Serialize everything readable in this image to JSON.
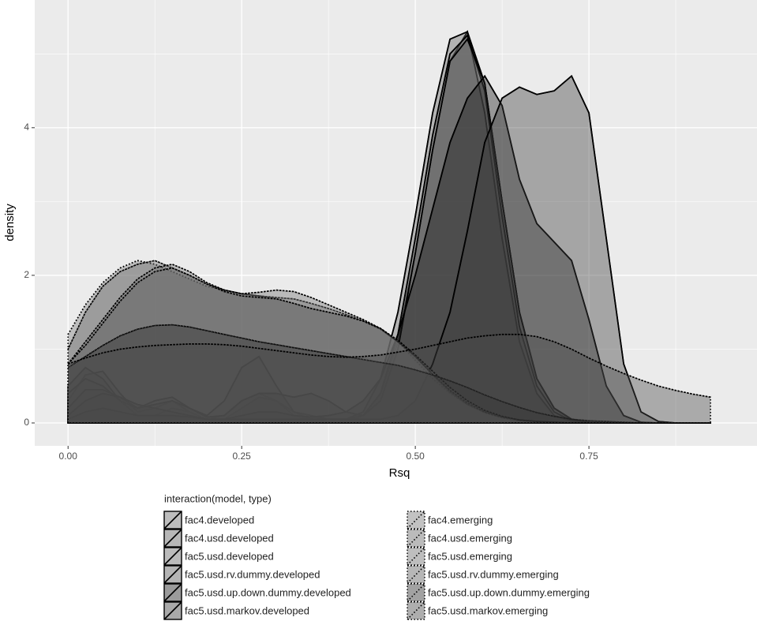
{
  "chart_data": {
    "type": "density",
    "x_label": "Rsq",
    "y_label": "density",
    "legend_title": "interaction(model, type)",
    "legend_position": "bottom",
    "grid": true,
    "fill_opacity": 0.4,
    "xlim": [
      -0.048,
      0.992
    ],
    "ylim": [
      -0.31,
      5.73
    ],
    "xticks": [
      {
        "value": 0,
        "label": "0.00"
      },
      {
        "value": 0.25,
        "label": "0.25"
      },
      {
        "value": 0.5,
        "label": "0.50"
      },
      {
        "value": 0.75,
        "label": "0.75"
      }
    ],
    "yticks": [
      0,
      2,
      4
    ],
    "x": [
      0,
      0.025,
      0.05,
      0.075,
      0.1,
      0.125,
      0.15,
      0.175,
      0.2,
      0.225,
      0.25,
      0.275,
      0.3,
      0.325,
      0.35,
      0.375,
      0.4,
      0.425,
      0.45,
      0.475,
      0.5,
      0.525,
      0.55,
      0.575,
      0.6,
      0.625,
      0.65,
      0.675,
      0.7,
      0.725,
      0.75,
      0.775,
      0.8,
      0.825,
      0.85,
      0.875,
      0.9,
      0.925
    ],
    "series": [
      {
        "name": "fac4.developed",
        "color": "#6e6e6e",
        "linestyle": "solid",
        "values": [
          0.3,
          0.65,
          0.7,
          0.4,
          0.15,
          0.2,
          0.3,
          0.15,
          0.05,
          0.1,
          0.3,
          0.4,
          0.3,
          0.1,
          0.05,
          0.02,
          0.03,
          0.1,
          0.4,
          1.1,
          2.3,
          3.7,
          4.9,
          5.3,
          4.6,
          3.0,
          1.5,
          0.6,
          0.2,
          0.05,
          0.01,
          0,
          0,
          0,
          0,
          0,
          0,
          0
        ]
      },
      {
        "name": "fac4.usd.developed",
        "color": "#5e5e5e",
        "linestyle": "solid",
        "values": [
          0.5,
          0.75,
          0.6,
          0.3,
          0.1,
          0.1,
          0.2,
          0.15,
          0.05,
          0.05,
          0.2,
          0.35,
          0.3,
          0.15,
          0.05,
          0.02,
          0.05,
          0.15,
          0.6,
          1.5,
          2.8,
          4.2,
          5.2,
          5.3,
          4.2,
          2.5,
          1.1,
          0.4,
          0.1,
          0.02,
          0,
          0,
          0,
          0,
          0,
          0,
          0,
          0
        ]
      },
      {
        "name": "fac5.usd.developed",
        "color": "#6a6a6a",
        "linestyle": "solid",
        "values": [
          0.4,
          0.6,
          0.5,
          0.3,
          0.2,
          0.3,
          0.35,
          0.2,
          0.1,
          0.3,
          0.75,
          0.9,
          0.5,
          0.15,
          0.1,
          0.05,
          0.05,
          0.1,
          0.4,
          1.2,
          2.5,
          3.9,
          5.0,
          5.25,
          4.5,
          2.8,
          1.3,
          0.5,
          0.15,
          0.03,
          0,
          0,
          0,
          0,
          0,
          0,
          0,
          0
        ]
      },
      {
        "name": "fac5.usd.rv.dummy.developed",
        "color": "#585858",
        "linestyle": "solid",
        "values": [
          0.2,
          0.45,
          0.45,
          0.35,
          0.2,
          0.25,
          0.3,
          0.2,
          0.08,
          0.1,
          0.3,
          0.4,
          0.4,
          0.35,
          0.4,
          0.3,
          0.15,
          0.1,
          0.3,
          1.0,
          2.3,
          3.7,
          4.9,
          5.2,
          4.6,
          3.0,
          1.5,
          0.6,
          0.2,
          0.05,
          0,
          0,
          0,
          0,
          0,
          0,
          0,
          0
        ]
      },
      {
        "name": "fac5.usd.up.down.dummy.developed",
        "color": "#1a1a1a",
        "linestyle": "solid",
        "values": [
          0.1,
          0.3,
          0.4,
          0.35,
          0.25,
          0.2,
          0.15,
          0.1,
          0.05,
          0.05,
          0.1,
          0.15,
          0.15,
          0.1,
          0.08,
          0.1,
          0.15,
          0.3,
          0.6,
          1.2,
          2.0,
          2.9,
          3.8,
          4.4,
          4.7,
          4.3,
          3.3,
          2.7,
          2.45,
          2.2,
          1.4,
          0.5,
          0.1,
          0.01,
          0,
          0,
          0,
          0
        ]
      },
      {
        "name": "fac5.usd.markov.developed",
        "color": "#3c3c3c",
        "linestyle": "solid",
        "values": [
          0.05,
          0.15,
          0.2,
          0.15,
          0.1,
          0.1,
          0.1,
          0.08,
          0.05,
          0.05,
          0.05,
          0.05,
          0.05,
          0.05,
          0.05,
          0.05,
          0.05,
          0.05,
          0.05,
          0.1,
          0.3,
          0.8,
          1.5,
          2.6,
          3.8,
          4.4,
          4.55,
          4.45,
          4.5,
          4.7,
          4.2,
          2.5,
          0.8,
          0.15,
          0.02,
          0,
          0,
          0
        ]
      },
      {
        "name": "fac4.emerging",
        "color": "#7a7a7a",
        "linestyle": "dotted",
        "values": [
          1.2,
          1.6,
          1.9,
          2.1,
          2.2,
          2.15,
          2.05,
          1.95,
          1.85,
          1.8,
          1.75,
          1.72,
          1.68,
          1.62,
          1.55,
          1.5,
          1.45,
          1.38,
          1.28,
          1.1,
          0.85,
          0.6,
          0.4,
          0.25,
          0.15,
          0.08,
          0.04,
          0.02,
          0.01,
          0,
          0,
          0,
          0,
          0,
          0,
          0,
          0,
          0
        ]
      },
      {
        "name": "fac4.usd.emerging",
        "color": "#6a6a6a",
        "linestyle": "dotted",
        "values": [
          1.0,
          1.5,
          1.85,
          2.05,
          2.15,
          2.2,
          2.1,
          2.0,
          1.88,
          1.8,
          1.75,
          1.72,
          1.7,
          1.68,
          1.62,
          1.55,
          1.47,
          1.38,
          1.27,
          1.1,
          0.9,
          0.65,
          0.42,
          0.25,
          0.14,
          0.07,
          0.03,
          0.01,
          0,
          0,
          0,
          0,
          0,
          0,
          0,
          0,
          0,
          0
        ]
      },
      {
        "name": "fac5.usd.emerging",
        "color": "#707070",
        "linestyle": "dotted",
        "values": [
          0.8,
          1.1,
          1.4,
          1.7,
          1.95,
          2.1,
          2.15,
          2.05,
          1.9,
          1.8,
          1.75,
          1.77,
          1.8,
          1.78,
          1.7,
          1.6,
          1.5,
          1.4,
          1.28,
          1.1,
          0.9,
          0.66,
          0.44,
          0.27,
          0.15,
          0.08,
          0.04,
          0.02,
          0.01,
          0,
          0,
          0,
          0,
          0,
          0,
          0,
          0,
          0
        ]
      },
      {
        "name": "fac5.usd.rv.dummy.emerging",
        "color": "#606060",
        "linestyle": "dotted",
        "values": [
          0.8,
          1.05,
          1.35,
          1.65,
          1.9,
          2.05,
          2.1,
          2.0,
          1.88,
          1.78,
          1.72,
          1.7,
          1.68,
          1.62,
          1.55,
          1.5,
          1.45,
          1.38,
          1.28,
          1.12,
          0.92,
          0.7,
          0.48,
          0.3,
          0.17,
          0.09,
          0.04,
          0.02,
          0.01,
          0,
          0,
          0,
          0,
          0,
          0,
          0,
          0,
          0
        ]
      },
      {
        "name": "fac5.usd.up.down.dummy.emerging",
        "color": "#2a2a2a",
        "linestyle": "dotted",
        "values": [
          0.75,
          0.9,
          1.05,
          1.18,
          1.27,
          1.32,
          1.33,
          1.3,
          1.25,
          1.2,
          1.15,
          1.1,
          1.06,
          1.02,
          0.98,
          0.94,
          0.9,
          0.86,
          0.82,
          0.78,
          0.72,
          0.65,
          0.57,
          0.48,
          0.38,
          0.29,
          0.21,
          0.14,
          0.09,
          0.05,
          0.03,
          0.02,
          0.01,
          0,
          0,
          0,
          0,
          0
        ]
      },
      {
        "name": "fac5.usd.markov.emerging",
        "color": "#484848",
        "linestyle": "dotted",
        "values": [
          0.8,
          0.88,
          0.95,
          1.0,
          1.03,
          1.05,
          1.06,
          1.07,
          1.07,
          1.06,
          1.04,
          1.01,
          0.98,
          0.95,
          0.92,
          0.9,
          0.89,
          0.9,
          0.92,
          0.96,
          1.0,
          1.05,
          1.1,
          1.15,
          1.18,
          1.2,
          1.2,
          1.17,
          1.1,
          1.0,
          0.88,
          0.77,
          0.67,
          0.58,
          0.5,
          0.44,
          0.39,
          0.35
        ]
      }
    ]
  }
}
